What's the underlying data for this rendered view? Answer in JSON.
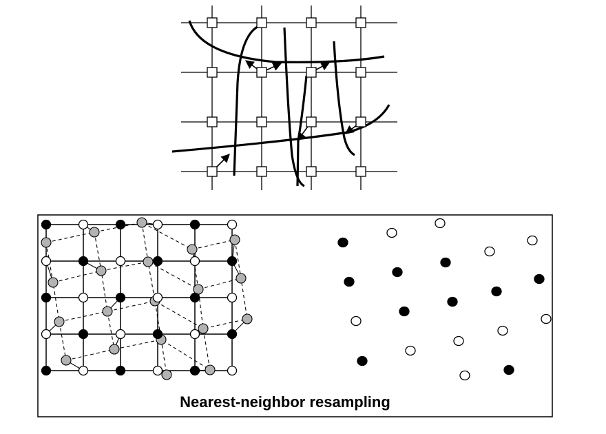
{
  "caption": "Nearest-neighbor resampling",
  "colors": {
    "ink": "#000000",
    "open_node": "#ffffff",
    "shifted_point": "#b3b3b3",
    "background": "#ffffff"
  },
  "top_diagram": {
    "type": "grid-with-warped-lines",
    "rows": 4,
    "cols": 4,
    "node_marker": "open-square",
    "arrow_count": 6
  },
  "bottom_left": {
    "grid_rows": 5,
    "grid_cols": 6,
    "node_types": [
      [
        "filled",
        "open",
        "filled",
        "open",
        "filled",
        "open"
      ],
      [
        "open",
        "filled",
        "open",
        "filled",
        "open",
        "filled"
      ],
      [
        "filled",
        "open",
        "filled",
        "open",
        "filled",
        "open"
      ],
      [
        "open",
        "filled",
        "open",
        "filled",
        "open",
        "filled"
      ],
      [
        "filled",
        "open",
        "filled",
        "open",
        "filled",
        "open"
      ]
    ],
    "shifted_point_marker": "gray-circle",
    "shifted_grid_line_style": "dashed"
  },
  "bottom_right": {
    "points": [
      {
        "type": "filled"
      },
      {
        "type": "open"
      },
      {
        "type": "open"
      },
      {
        "type": "open"
      },
      {
        "type": "open"
      },
      {
        "type": "filled"
      },
      {
        "type": "filled"
      },
      {
        "type": "filled"
      },
      {
        "type": "filled"
      },
      {
        "type": "filled"
      },
      {
        "type": "open"
      },
      {
        "type": "filled"
      },
      {
        "type": "filled"
      },
      {
        "type": "open"
      },
      {
        "type": "open"
      },
      {
        "type": "filled"
      },
      {
        "type": "open"
      },
      {
        "type": "open"
      },
      {
        "type": "filled"
      },
      {
        "type": "open"
      },
      {
        "type": "filled"
      }
    ]
  }
}
